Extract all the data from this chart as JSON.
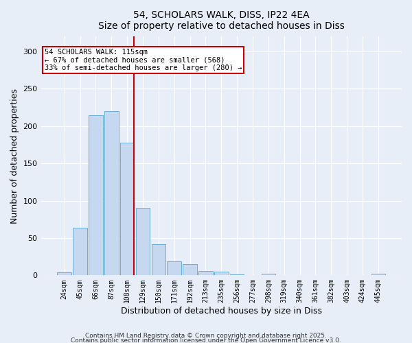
{
  "title_line1": "54, SCHOLARS WALK, DISS, IP22 4EA",
  "title_line2": "Size of property relative to detached houses in Diss",
  "xlabel": "Distribution of detached houses by size in Diss",
  "ylabel": "Number of detached properties",
  "categories": [
    "24sqm",
    "45sqm",
    "66sqm",
    "87sqm",
    "108sqm",
    "129sqm",
    "150sqm",
    "171sqm",
    "192sqm",
    "213sqm",
    "235sqm",
    "256sqm",
    "277sqm",
    "298sqm",
    "319sqm",
    "340sqm",
    "361sqm",
    "382sqm",
    "403sqm",
    "424sqm",
    "445sqm"
  ],
  "values": [
    4,
    64,
    215,
    220,
    178,
    90,
    42,
    19,
    15,
    6,
    5,
    1,
    0,
    2,
    0,
    0,
    0,
    0,
    0,
    0,
    2
  ],
  "bar_color": "#c5d8f0",
  "bar_edgecolor": "#6aaed6",
  "vline_x_index": 4,
  "vline_color": "#cc0000",
  "annotation_text": "54 SCHOLARS WALK: 115sqm\n← 67% of detached houses are smaller (568)\n33% of semi-detached houses are larger (280) →",
  "annotation_box_edgecolor": "#cc0000",
  "annotation_box_facecolor": "#ffffff",
  "ylim": [
    0,
    320
  ],
  "yticks": [
    0,
    50,
    100,
    150,
    200,
    250,
    300
  ],
  "footer_text1": "Contains HM Land Registry data © Crown copyright and database right 2025.",
  "footer_text2": "Contains public sector information licensed under the Open Government Licence v3.0.",
  "background_color": "#e8eef8",
  "plot_background_color": "#e8eef8",
  "figsize": [
    6.0,
    5.0
  ],
  "dpi": 100
}
